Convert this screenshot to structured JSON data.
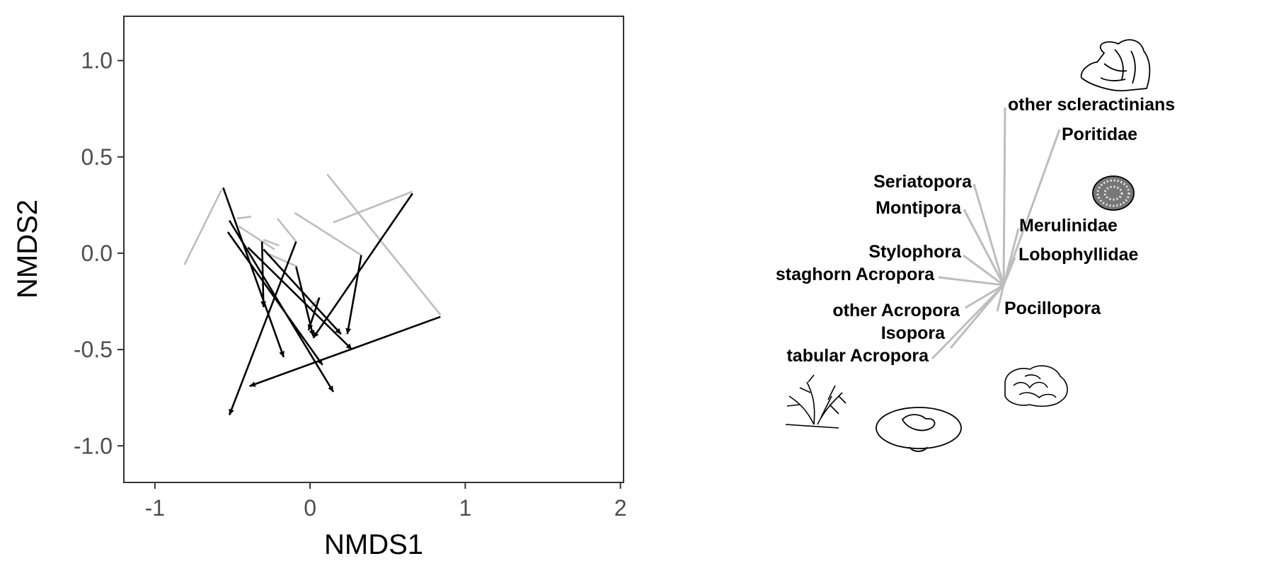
{
  "chart_data": [
    {
      "type": "scatter",
      "title": "",
      "xlabel": "NMDS1",
      "ylabel": "NMDS2",
      "xlim": [
        -1.2,
        2.02
      ],
      "ylim": [
        -1.19,
        1.23
      ],
      "x_ticks": [
        -1,
        0,
        1,
        2
      ],
      "x_tick_labels": [
        "-1",
        "0",
        "1",
        "2"
      ],
      "y_ticks": [
        1.0,
        0.5,
        0.0,
        -0.5,
        -1.0
      ],
      "y_tick_labels": [
        "1.0",
        "0.5",
        "0.0",
        "-0.5",
        "-1.0"
      ],
      "grid": false,
      "series": [
        {
          "style": "grey segments",
          "color": "#bdbdbd",
          "segments": [
            [
              [
                -0.57,
                0.33
              ],
              [
                -0.81,
                -0.06
              ]
            ],
            [
              [
                -0.47,
                0.18
              ],
              [
                -0.38,
                0.19
              ]
            ],
            [
              [
                -0.46,
                0.14
              ],
              [
                -0.23,
                0.02
              ]
            ],
            [
              [
                -0.3,
                0.07
              ],
              [
                -0.2,
                0.04
              ]
            ],
            [
              [
                -0.21,
                0.18
              ],
              [
                -0.09,
                0.06
              ]
            ],
            [
              [
                -0.28,
                0.0
              ],
              [
                -0.08,
                -0.07
              ]
            ],
            [
              [
                0.11,
                0.41
              ],
              [
                0.84,
                -0.32
              ]
            ],
            [
              [
                -0.1,
                0.21
              ],
              [
                0.33,
                -0.01
              ]
            ],
            [
              [
                0.15,
                0.16
              ],
              [
                0.66,
                0.32
              ]
            ],
            [
              [
                0.0,
                -0.29
              ],
              [
                0.06,
                -0.23
              ]
            ]
          ]
        },
        {
          "style": "black arrows",
          "color": "#000000",
          "arrows": [
            [
              [
                -0.56,
                0.34
              ],
              [
                -0.17,
                -0.54
              ]
            ],
            [
              [
                -0.52,
                0.17
              ],
              [
                0.15,
                -0.72
              ]
            ],
            [
              [
                -0.53,
                0.11
              ],
              [
                0.08,
                -0.58
              ]
            ],
            [
              [
                -0.4,
                0.03
              ],
              [
                0.27,
                -0.5
              ]
            ],
            [
              [
                -0.31,
                0.06
              ],
              [
                -0.3,
                -0.28
              ]
            ],
            [
              [
                -0.3,
                0.02
              ],
              [
                0.2,
                -0.42
              ]
            ],
            [
              [
                -0.09,
                0.06
              ],
              [
                -0.52,
                -0.84
              ]
            ],
            [
              [
                -0.09,
                -0.07
              ],
              [
                0.02,
                -0.43
              ]
            ],
            [
              [
                0.06,
                -0.23
              ],
              [
                -0.01,
                -0.4
              ]
            ],
            [
              [
                0.33,
                -0.01
              ],
              [
                0.24,
                -0.42
              ]
            ],
            [
              [
                0.66,
                0.31
              ],
              [
                0.02,
                -0.44
              ]
            ],
            [
              [
                0.84,
                -0.33
              ],
              [
                -0.39,
                -0.69
              ]
            ]
          ]
        }
      ]
    },
    {
      "type": "biplot-vectors",
      "color": "#bdbdbd",
      "labels": [
        "other scleractinians",
        "Poritidae",
        "Seriatopora",
        "Montipora",
        "Merulinidae",
        "Lobophyllidae",
        "Stylophora",
        "staghorn Acropora",
        "Pocillopora",
        "other Acropora",
        "Isopora",
        "tabular Acropora"
      ],
      "icons": [
        "massive-coral-icon",
        "porites-ball-icon",
        "branching-coral-icon",
        "tabular-coral-icon",
        "brain-coral-icon"
      ]
    }
  ]
}
